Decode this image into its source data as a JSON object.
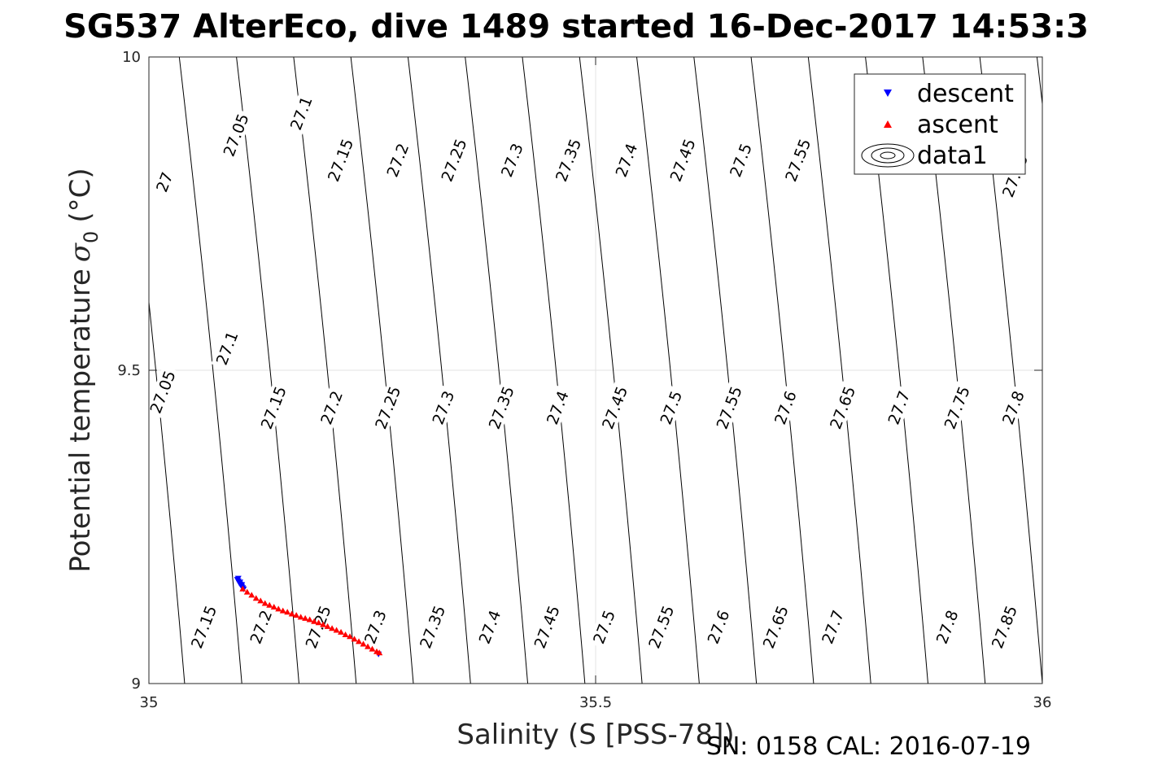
{
  "chart_data": {
    "type": "scatter",
    "title": "SG537 AlterEco, dive 1489 started 16-Dec-2017 14:53:3",
    "xlabel": "Salinity (S [PSS-78])",
    "ylabel_main": "Potential temperature",
    "ylabel_symbol": "σ",
    "ylabel_subscript": "0",
    "ylabel_unit": "(°C)",
    "xlim": [
      35,
      36
    ],
    "ylim": [
      9,
      10
    ],
    "xticks": [
      "35",
      "35.5",
      "36"
    ],
    "yticks": [
      "9",
      "9.5",
      "10"
    ],
    "grid": true,
    "legend_position": "top-right",
    "legend": [
      "descent",
      "ascent",
      "data1"
    ],
    "footer": "SN: 0158  CAL: 2016-07-19",
    "series": [
      {
        "name": "descent",
        "marker": "triangle-down",
        "color": "#0000ff",
        "x": [
          35.099,
          35.1,
          35.101,
          35.102,
          35.103,
          35.104,
          35.105,
          35.106,
          35.1,
          35.102,
          35.104,
          35.257
        ],
        "y": [
          9.166,
          9.164,
          9.161,
          9.159,
          9.157,
          9.155,
          9.153,
          9.151,
          9.168,
          9.162,
          9.158,
          9.047
        ]
      },
      {
        "name": "ascent",
        "marker": "triangle-up",
        "color": "#ff0000",
        "x": [
          35.105,
          35.11,
          35.115,
          35.12,
          35.125,
          35.13,
          35.135,
          35.14,
          35.145,
          35.15,
          35.155,
          35.16,
          35.165,
          35.17,
          35.175,
          35.18,
          35.185,
          35.19,
          35.195,
          35.2,
          35.205,
          35.21,
          35.215,
          35.22,
          35.225,
          35.23,
          35.235,
          35.24,
          35.245,
          35.25,
          35.255,
          35.258
        ],
        "y": [
          9.151,
          9.146,
          9.141,
          9.136,
          9.132,
          9.128,
          9.125,
          9.122,
          9.119,
          9.116,
          9.114,
          9.111,
          9.109,
          9.106,
          9.104,
          9.102,
          9.099,
          9.097,
          9.094,
          9.091,
          9.088,
          9.085,
          9.082,
          9.078,
          9.075,
          9.071,
          9.067,
          9.063,
          9.059,
          9.055,
          9.051,
          9.049
        ]
      }
    ],
    "contours": {
      "line_color": "#000000",
      "lines": [
        {
          "x_bottom": 35.04,
          "x_top": 34.97
        },
        {
          "x_bottom": 35.104,
          "x_top": 35.034
        },
        {
          "x_bottom": 35.168,
          "x_top": 35.098
        },
        {
          "x_bottom": 35.232,
          "x_top": 35.162
        },
        {
          "x_bottom": 35.296,
          "x_top": 35.226
        },
        {
          "x_bottom": 35.36,
          "x_top": 35.29
        },
        {
          "x_bottom": 35.424,
          "x_top": 35.354
        },
        {
          "x_bottom": 35.488,
          "x_top": 35.418
        },
        {
          "x_bottom": 35.552,
          "x_top": 35.482
        },
        {
          "x_bottom": 35.616,
          "x_top": 35.546
        },
        {
          "x_bottom": 35.68,
          "x_top": 35.61
        },
        {
          "x_bottom": 35.744,
          "x_top": 35.674
        },
        {
          "x_bottom": 35.808,
          "x_top": 35.738
        },
        {
          "x_bottom": 35.872,
          "x_top": 35.802
        },
        {
          "x_bottom": 35.936,
          "x_top": 35.866
        },
        {
          "x_bottom": 36.0,
          "x_top": 35.93
        },
        {
          "x_bottom": 36.064,
          "x_top": 35.994
        },
        {
          "x_bottom": 36.128,
          "x_top": 36.058
        }
      ],
      "labels": [
        {
          "text": "27",
          "x": 35.018,
          "y": 9.8
        },
        {
          "text": "27.05",
          "x": 35.098,
          "y": 9.875
        },
        {
          "text": "27.1",
          "x": 35.171,
          "y": 9.91
        },
        {
          "text": "27.15",
          "x": 35.215,
          "y": 9.835
        },
        {
          "text": "27.2",
          "x": 35.279,
          "y": 9.835
        },
        {
          "text": "27.25",
          "x": 35.342,
          "y": 9.835
        },
        {
          "text": "27.3",
          "x": 35.407,
          "y": 9.835
        },
        {
          "text": "27.35",
          "x": 35.47,
          "y": 9.835
        },
        {
          "text": "27.4",
          "x": 35.535,
          "y": 9.835
        },
        {
          "text": "27.45",
          "x": 35.598,
          "y": 9.835
        },
        {
          "text": "27.5",
          "x": 35.663,
          "y": 9.835
        },
        {
          "text": "27.55",
          "x": 35.727,
          "y": 9.835
        },
        {
          "text": "27.75",
          "x": 35.97,
          "y": 9.81
        },
        {
          "text": "27.05",
          "x": 35.016,
          "y": 9.465
        },
        {
          "text": "27.1",
          "x": 35.088,
          "y": 9.535
        },
        {
          "text": "27.15",
          "x": 35.14,
          "y": 9.44
        },
        {
          "text": "27.2",
          "x": 35.205,
          "y": 9.44
        },
        {
          "text": "27.25",
          "x": 35.268,
          "y": 9.44
        },
        {
          "text": "27.3",
          "x": 35.33,
          "y": 9.44
        },
        {
          "text": "27.35",
          "x": 35.395,
          "y": 9.44
        },
        {
          "text": "27.4",
          "x": 35.458,
          "y": 9.44
        },
        {
          "text": "27.45",
          "x": 35.522,
          "y": 9.44
        },
        {
          "text": "27.5",
          "x": 35.585,
          "y": 9.44
        },
        {
          "text": "27.55",
          "x": 35.65,
          "y": 9.44
        },
        {
          "text": "27.6",
          "x": 35.713,
          "y": 9.44
        },
        {
          "text": "27.65",
          "x": 35.777,
          "y": 9.44
        },
        {
          "text": "27.7",
          "x": 35.84,
          "y": 9.44
        },
        {
          "text": "27.75",
          "x": 35.905,
          "y": 9.44
        },
        {
          "text": "27.8",
          "x": 35.968,
          "y": 9.44
        },
        {
          "text": "27.15",
          "x": 35.062,
          "y": 9.09
        },
        {
          "text": "27.2",
          "x": 35.126,
          "y": 9.09
        },
        {
          "text": "27.25",
          "x": 35.19,
          "y": 9.09
        },
        {
          "text": "27.3",
          "x": 35.254,
          "y": 9.09
        },
        {
          "text": "27.35",
          "x": 35.318,
          "y": 9.09
        },
        {
          "text": "27.4",
          "x": 35.382,
          "y": 9.09
        },
        {
          "text": "27.45",
          "x": 35.446,
          "y": 9.09
        },
        {
          "text": "27.5",
          "x": 35.51,
          "y": 9.09
        },
        {
          "text": "27.55",
          "x": 35.574,
          "y": 9.09
        },
        {
          "text": "27.6",
          "x": 35.638,
          "y": 9.09
        },
        {
          "text": "27.65",
          "x": 35.702,
          "y": 9.09
        },
        {
          "text": "27.7",
          "x": 35.766,
          "y": 9.09
        },
        {
          "text": "27.8",
          "x": 35.894,
          "y": 9.09
        },
        {
          "text": "27.85",
          "x": 35.958,
          "y": 9.09
        }
      ]
    }
  }
}
